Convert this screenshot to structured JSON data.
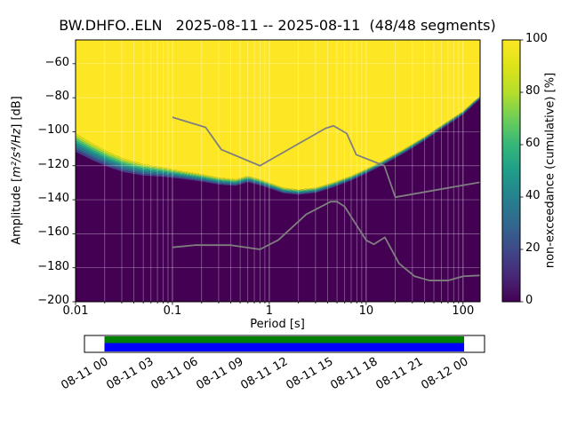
{
  "figure": {
    "title": "BW.DHFO..ELN   2025-08-11 -- 2025-08-11  (48/48 segments)"
  },
  "axes": {
    "xlabel": "Period [s]",
    "ylabel_prefix": "Amplitude [",
    "ylabel_math": "m²/s⁴/Hz",
    "ylabel_suffix": "] [dB]",
    "x_ticks": [
      "0.01",
      "0.1",
      "1",
      "10",
      "100"
    ],
    "x_tick_values": [
      0.01,
      0.1,
      1,
      10,
      100
    ],
    "y_ticks": [
      "−60",
      "−80",
      "−100",
      "−120",
      "−140",
      "−160",
      "−180",
      "−200"
    ],
    "y_tick_values": [
      -60,
      -80,
      -100,
      -120,
      -140,
      -160,
      -180,
      -200
    ]
  },
  "colorbar": {
    "label": "non-exceedance (cumulative) [%]",
    "ticks": [
      "0",
      "20",
      "40",
      "60",
      "80",
      "100"
    ],
    "tick_values": [
      0,
      20,
      40,
      60,
      80,
      100
    ]
  },
  "timeline": {
    "tick_labels": [
      "08-11 00",
      "08-11 03",
      "08-11 06",
      "08-11 09",
      "08-11 12",
      "08-11 15",
      "08-11 18",
      "08-11 21",
      "08-12 00"
    ],
    "coverage_top_color": "#008000",
    "coverage_bottom_color": "#0000ff"
  },
  "chart_data": {
    "type": "heatmap",
    "title": "BW.DHFO..ELN   2025-08-11 -- 2025-08-11  (48/48 segments)",
    "station": "BW.DHFO..ELN",
    "date_range": "2025-08-11 -- 2025-08-11",
    "segments_used": 48,
    "segments_total": 48,
    "xlabel": "Period [s]",
    "ylabel": "Amplitude [m²/s⁴/Hz] [dB]",
    "xscale": "log",
    "xlim": [
      0.01,
      150
    ],
    "ylim": [
      -200,
      -46
    ],
    "grid": true,
    "y_gridlines": [
      -60,
      -80,
      -100,
      -120,
      -140,
      -160,
      -180
    ],
    "colorbar": {
      "label": "non-exceedance (cumulative) [%]",
      "range": [
        0,
        100
      ],
      "colormap": "viridis",
      "stops": [
        {
          "at": 0.0,
          "color": "#440154"
        },
        {
          "at": 0.1,
          "color": "#482878"
        },
        {
          "at": 0.2,
          "color": "#3e4989"
        },
        {
          "at": 0.3,
          "color": "#31688e"
        },
        {
          "at": 0.4,
          "color": "#26828e"
        },
        {
          "at": 0.5,
          "color": "#1f9e89"
        },
        {
          "at": 0.6,
          "color": "#35b779"
        },
        {
          "at": 0.7,
          "color": "#6ece58"
        },
        {
          "at": 0.8,
          "color": "#b5de2b"
        },
        {
          "at": 0.9,
          "color": "#dde318"
        },
        {
          "at": 1.0,
          "color": "#fde725"
        }
      ]
    },
    "note": "Cumulative PPSD: non-exceedance jumps from 0% (dark purple, below) to 100% (yellow, above) across a narrow amplitude band; boundary_curve gives the transition center in dB at each period.",
    "boundary_curve": {
      "period_s": [
        0.01,
        0.015,
        0.022,
        0.032,
        0.05,
        0.08,
        0.12,
        0.2,
        0.3,
        0.45,
        0.6,
        0.8,
        1.0,
        1.4,
        2.0,
        3.0,
        4.5,
        7.0,
        10,
        15,
        25,
        40,
        65,
        100,
        130,
        150
      ],
      "db": [
        -101,
        -107,
        -112,
        -116,
        -119,
        -121,
        -123,
        -125,
        -127,
        -128,
        -126,
        -128,
        -130,
        -133,
        -134,
        -133,
        -130,
        -126,
        -122,
        -117,
        -110,
        -103,
        -95,
        -88,
        -82,
        -79
      ]
    },
    "band_colors": [
      "#d8e219",
      "#a0da39",
      "#56c667",
      "#2ab07f",
      "#21918c",
      "#297b8e",
      "#355f8d",
      "#433e85"
    ],
    "noise_models": {
      "color": "#7f7f7f",
      "high_noise_model": {
        "period_s": [
          0.1,
          0.22,
          0.32,
          0.8,
          3.8,
          4.6,
          6.3,
          7.9,
          15.4,
          20.0,
          150.0
        ],
        "db": [
          -91.5,
          -97.4,
          -110.5,
          -120.0,
          -98.0,
          -96.5,
          -101.0,
          -113.5,
          -120.0,
          -138.5,
          -129.7
        ]
      },
      "low_noise_model": {
        "period_s": [
          0.1,
          0.17,
          0.4,
          0.8,
          1.24,
          2.4,
          4.3,
          5.0,
          6.0,
          10.0,
          12.0,
          15.6,
          21.9,
          31.6,
          45.0,
          70.0,
          101.0,
          150.0
        ],
        "db": [
          -168.0,
          -166.7,
          -166.7,
          -169.2,
          -163.7,
          -148.6,
          -141.1,
          -141.1,
          -144.0,
          -163.8,
          -166.2,
          -162.1,
          -177.5,
          -185.0,
          -187.5,
          -187.5,
          -185.0,
          -184.5
        ]
      }
    },
    "timeline": {
      "axis_start": "08-11 00",
      "axis_end": "08-12 00",
      "hours_per_tick": 3,
      "coverage_frac": [
        0.048,
        0.951
      ]
    }
  }
}
